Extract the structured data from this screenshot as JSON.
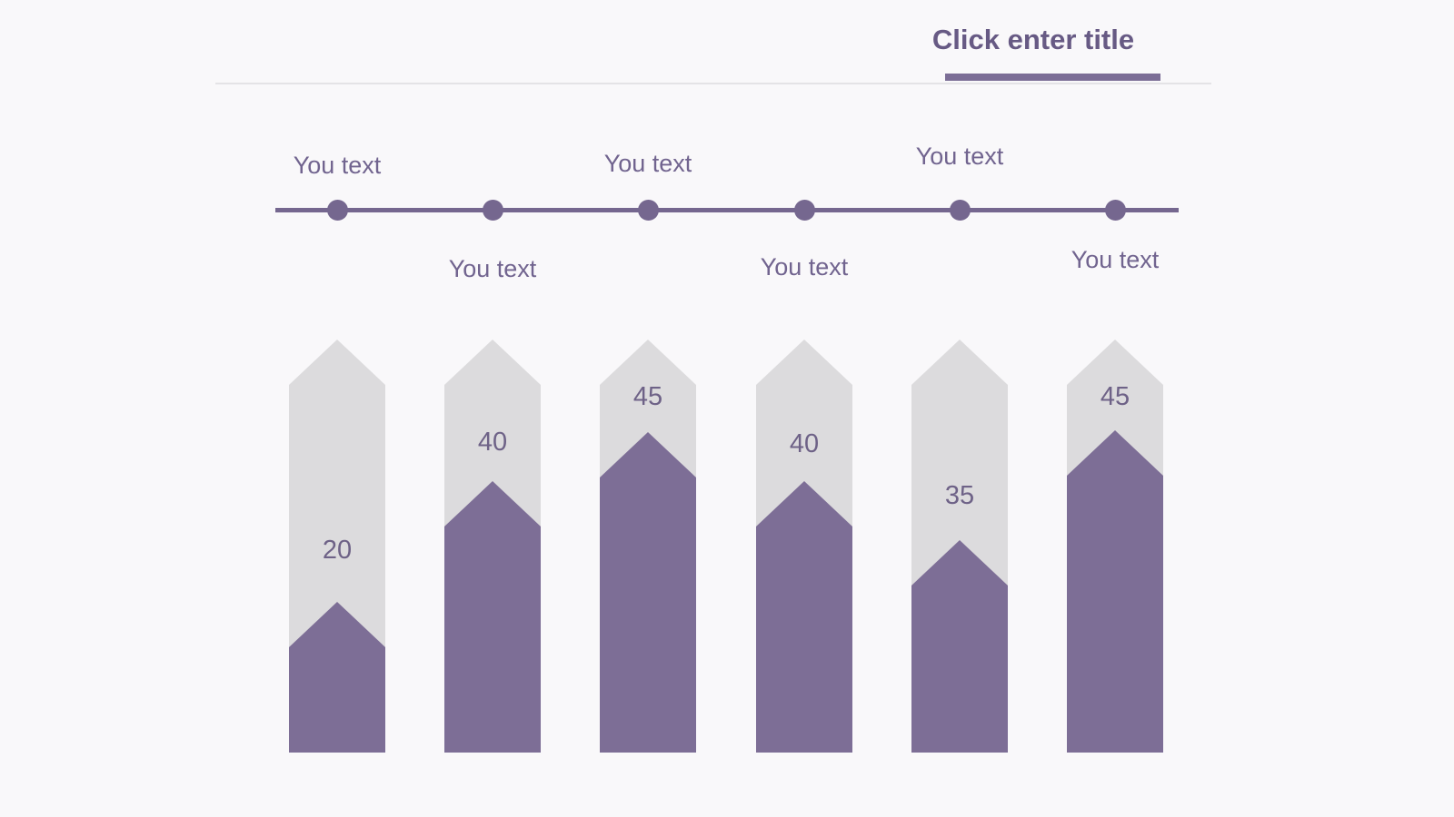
{
  "header": {
    "title": "Click enter title",
    "accent_color": "#7c6e96",
    "title_color": "#675a84",
    "divider_color": "#e4e3e6"
  },
  "timeline": {
    "line_color": "#75678f",
    "nodes": [
      {
        "label": "You text",
        "position": "above"
      },
      {
        "label": "You text",
        "position": "below"
      },
      {
        "label": "You text",
        "position": "above"
      },
      {
        "label": "You text",
        "position": "below"
      },
      {
        "label": "You text",
        "position": "above"
      },
      {
        "label": "You text",
        "position": "below"
      }
    ]
  },
  "chart_data": {
    "type": "bar",
    "categories": [
      "You text",
      "You text",
      "You text",
      "You text",
      "You text",
      "You text"
    ],
    "values": [
      20,
      40,
      45,
      40,
      35,
      45
    ],
    "value_labels": [
      "20",
      "40",
      "45",
      "40",
      "35",
      "45"
    ],
    "title": "Click enter title",
    "xlabel": "",
    "ylabel": "",
    "ylim": [
      0,
      50
    ],
    "grid": false,
    "legend": false,
    "track_color": "#dcdbdd",
    "fill_color": "#7d6e96",
    "label_color": "#6e6287"
  },
  "colors": {
    "background": "#f9f8fa"
  }
}
